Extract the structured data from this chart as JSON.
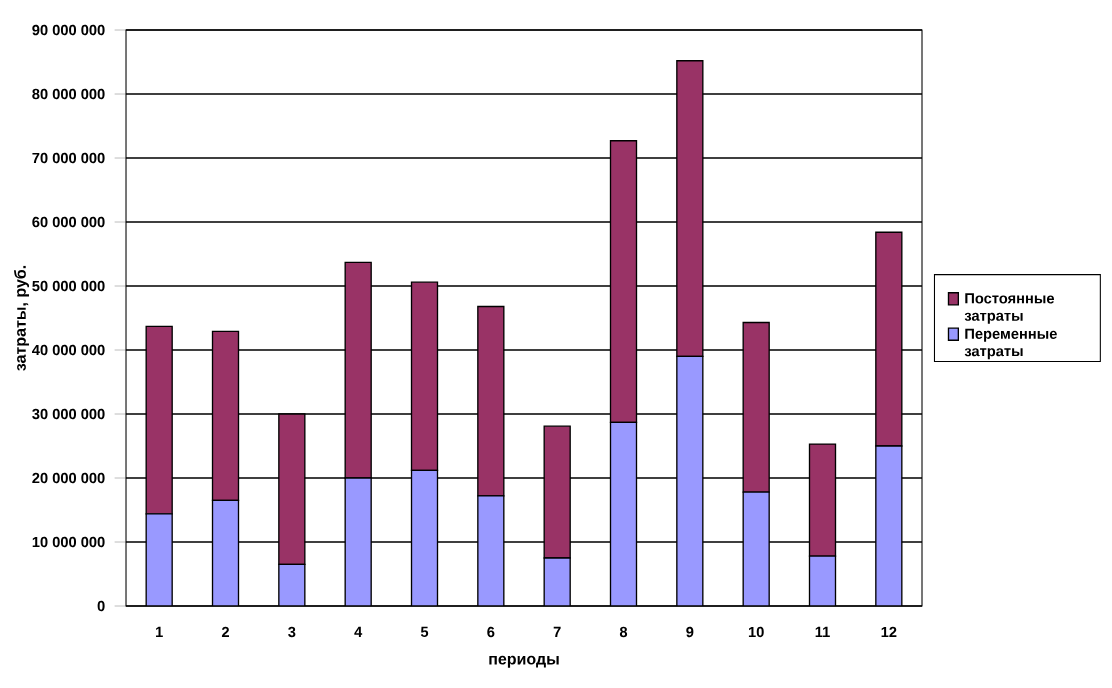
{
  "chart_data": {
    "type": "bar",
    "stacked": true,
    "xlabel": "периоды",
    "ylabel": "затраты, руб.",
    "categories": [
      "1",
      "2",
      "3",
      "4",
      "5",
      "6",
      "7",
      "8",
      "9",
      "10",
      "11",
      "12"
    ],
    "series": [
      {
        "name": "Переменные затраты",
        "color": "#9999ff",
        "values": [
          14400000,
          16500000,
          6500000,
          20000000,
          21200000,
          17200000,
          7500000,
          28700000,
          39000000,
          17800000,
          7800000,
          25000000
        ]
      },
      {
        "name": "Постоянные затраты",
        "color": "#993366",
        "values": [
          29300000,
          26400000,
          23500000,
          33700000,
          29400000,
          29600000,
          20600000,
          44000000,
          46200000,
          26500000,
          17500000,
          33400000
        ]
      }
    ],
    "ylim": [
      0,
      90000000
    ],
    "yticks": [
      {
        "value": 0,
        "label": "0"
      },
      {
        "value": 10000000,
        "label": "10 000 000"
      },
      {
        "value": 20000000,
        "label": "20 000 000"
      },
      {
        "value": 30000000,
        "label": "30 000 000"
      },
      {
        "value": 40000000,
        "label": "40 000 000"
      },
      {
        "value": 50000000,
        "label": "50 000 000"
      },
      {
        "value": 60000000,
        "label": "60 000 000"
      },
      {
        "value": 70000000,
        "label": "70 000 000"
      },
      {
        "value": 80000000,
        "label": "80 000 000"
      },
      {
        "value": 90000000,
        "label": "90 000 000"
      }
    ],
    "grid": "y",
    "legend": "right"
  }
}
